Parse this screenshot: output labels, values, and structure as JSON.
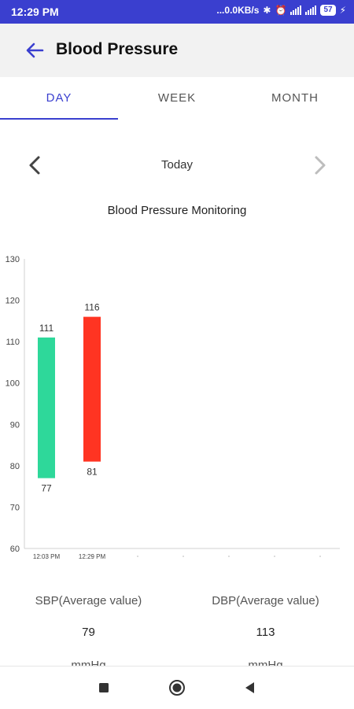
{
  "status_bar": {
    "time": "12:29 PM",
    "network_speed": "...0.0KB/s",
    "battery": "57",
    "icons": [
      "bluetooth-icon",
      "alarm-off-icon",
      "signal-icon",
      "signal-4g-icon",
      "battery-icon",
      "charging-icon"
    ]
  },
  "header": {
    "title": "Blood Pressure",
    "back_icon": "arrow-back-icon"
  },
  "tabs": [
    {
      "label": "DAY",
      "active": true
    },
    {
      "label": "WEEK",
      "active": false
    },
    {
      "label": "MONTH",
      "active": false
    }
  ],
  "date_nav": {
    "label": "Today",
    "prev_icon": "chevron-left-icon",
    "next_icon": "chevron-right-icon"
  },
  "chart_title": "Blood Pressure Monitoring",
  "chart_data": {
    "type": "bar",
    "title": "Blood Pressure Monitoring",
    "categories": [
      "12:03 PM",
      "12:29 PM",
      "",
      "",
      "",
      "",
      ""
    ],
    "ylim": [
      60,
      130
    ],
    "yticks": [
      60,
      70,
      80,
      90,
      100,
      110,
      120,
      130
    ],
    "grid": false,
    "series": [
      {
        "low": 77,
        "high": 111,
        "color": "#2ed89a"
      },
      {
        "low": 81,
        "high": 116,
        "color": "#ff3422"
      }
    ]
  },
  "summary": [
    {
      "label": "SBP(Average value)",
      "value": "79",
      "unit": "mmHg"
    },
    {
      "label": "DBP(Average value)",
      "value": "113",
      "unit": "mmHg"
    }
  ],
  "colors": {
    "accent": "#3a3fcf",
    "bar_low": "#2ed89a",
    "bar_high": "#ff3422"
  },
  "nav_bar": {
    "icons": [
      "recents-square-icon",
      "home-circle-icon",
      "back-triangle-icon"
    ]
  }
}
